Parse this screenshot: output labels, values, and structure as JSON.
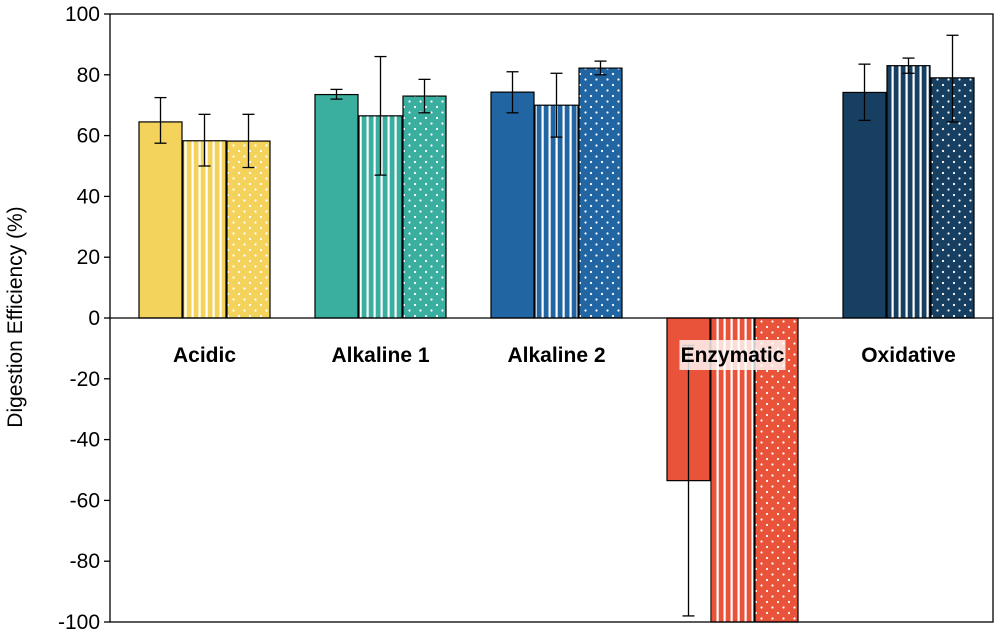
{
  "chart_data": {
    "type": "bar",
    "ylabel": "Digestion Efficiency (%)",
    "ylim": [
      -100,
      100
    ],
    "yticks": [
      100,
      80,
      60,
      40,
      20,
      0,
      -20,
      -40,
      -60,
      -80,
      -100
    ],
    "grid": false,
    "legend": "none",
    "categories": [
      "Acidic",
      "Alkaline 1",
      "Alkaline 2",
      "Enzymatic",
      "Oxidative"
    ],
    "category_colors": [
      "#F3D35C",
      "#3AAE9F",
      "#2166A3",
      "#E9533A",
      "#173F62"
    ],
    "bar_patterns": [
      "solid",
      "vertical-stripes",
      "dots"
    ],
    "bars": [
      [
        {
          "value": 64.5,
          "err_low": 57.5,
          "err_high": 72.5
        },
        {
          "value": 58.3,
          "err_low": 50.0,
          "err_high": 67.0
        },
        {
          "value": 58.2,
          "err_low": 49.5,
          "err_high": 67.0
        }
      ],
      [
        {
          "value": 73.5,
          "err_low": 72.0,
          "err_high": 75.2
        },
        {
          "value": 66.5,
          "err_low": 47.0,
          "err_high": 86.0
        },
        {
          "value": 73.0,
          "err_low": 67.5,
          "err_high": 78.5
        }
      ],
      [
        {
          "value": 74.3,
          "err_low": 67.5,
          "err_high": 81.0
        },
        {
          "value": 70.0,
          "err_low": 59.5,
          "err_high": 80.5
        },
        {
          "value": 82.2,
          "err_low": 80.0,
          "err_high": 84.5
        }
      ],
      [
        {
          "value": -53.5,
          "err_low": -98.0,
          "err_high": -9.0
        },
        {
          "value": -100,
          "err_low": null,
          "err_high": null
        },
        {
          "value": -100,
          "err_low": null,
          "err_high": null
        }
      ],
      [
        {
          "value": 74.2,
          "err_low": 65.0,
          "err_high": 83.5
        },
        {
          "value": 83.0,
          "err_low": 80.5,
          "err_high": 85.5
        },
        {
          "value": 79.0,
          "err_low": 64.5,
          "err_high": 93.0
        }
      ]
    ]
  }
}
